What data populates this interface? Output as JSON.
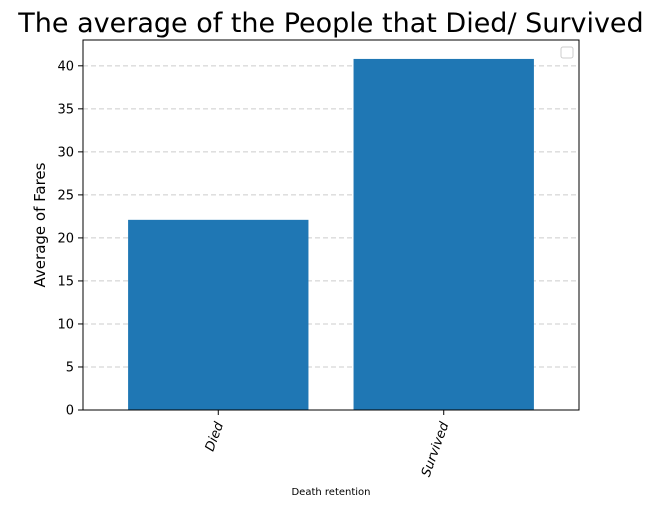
{
  "chart_data": {
    "type": "bar",
    "title": "The average of the People that Died/ Survived",
    "xlabel": "Death retention",
    "ylabel": "Average of Fares",
    "categories": [
      "Died",
      "Survived"
    ],
    "values": [
      22.1,
      40.8
    ],
    "ylim": [
      0,
      43
    ],
    "yticks": [
      0,
      5,
      10,
      15,
      20,
      25,
      30,
      35,
      40
    ],
    "ytick_labels": [
      "0",
      "5",
      "10",
      "15",
      "20",
      "25",
      "30",
      "35",
      "40"
    ],
    "grid": "horizontal dashed",
    "legend": "top-right",
    "bar_color": "#1f77b4",
    "grid_color": "#cccccc"
  }
}
